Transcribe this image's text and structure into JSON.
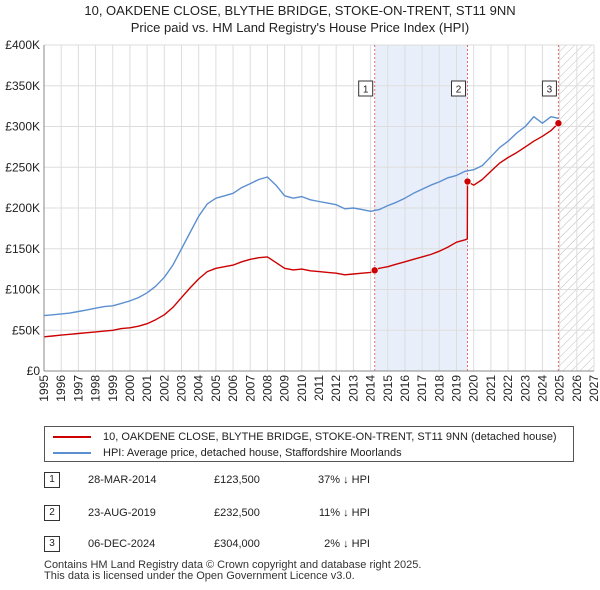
{
  "title": {
    "line1": "10, OAKDENE CLOSE, BLYTHE BRIDGE, STOKE-ON-TRENT, ST11 9NN",
    "line2": "Price paid vs. HM Land Registry's House Price Index (HPI)"
  },
  "legend": {
    "property_label": "10, OAKDENE CLOSE, BLYTHE BRIDGE, STOKE-ON-TRENT, ST11 9NN (detached house)",
    "hpi_label": "HPI: Average price, detached house, Staffordshire Moorlands"
  },
  "sales": [
    {
      "num": "1",
      "date": "28-MAR-2014",
      "price": "£123,500",
      "hpi": "37% ↓ HPI"
    },
    {
      "num": "2",
      "date": "23-AUG-2019",
      "price": "£232,500",
      "hpi": "11% ↓ HPI"
    },
    {
      "num": "3",
      "date": "06-DEC-2024",
      "price": "£304,000",
      "hpi": "2% ↓ HPI"
    }
  ],
  "footer": {
    "line1": "Contains HM Land Registry data © Crown copyright and database right 2025.",
    "line2": "This data is licensed under the Open Government Licence v3.0."
  },
  "colors": {
    "property": "#cc0000",
    "hpi": "#5b8fd0",
    "highlight": "#e8eefa",
    "marker_line": "#e07070",
    "grid": "#dddddd"
  },
  "chart_data": {
    "type": "line",
    "xlabel": "",
    "ylabel": "",
    "xlim": [
      1995,
      2027
    ],
    "ylim": [
      0,
      400000
    ],
    "x_ticks": [
      1995,
      1996,
      1997,
      1998,
      1999,
      2000,
      2001,
      2002,
      2003,
      2004,
      2005,
      2006,
      2007,
      2008,
      2009,
      2010,
      2011,
      2012,
      2013,
      2014,
      2015,
      2016,
      2017,
      2018,
      2019,
      2020,
      2021,
      2022,
      2023,
      2024,
      2025,
      2026,
      2027
    ],
    "y_ticks": [
      0,
      50000,
      100000,
      150000,
      200000,
      250000,
      300000,
      350000,
      400000
    ],
    "y_tick_labels": [
      "£0",
      "£50K",
      "£100K",
      "£150K",
      "£200K",
      "£250K",
      "£300K",
      "£350K",
      "£400K"
    ],
    "grid": true,
    "highlight_span": [
      2014.24,
      2019.64
    ],
    "forecast_from": 2024.93,
    "series": [
      {
        "name": "HPI: Average price, detached house, Staffordshire Moorlands",
        "x": [
          1995,
          1995.5,
          1996,
          1996.5,
          1997,
          1997.5,
          1998,
          1998.5,
          1999,
          1999.5,
          2000,
          2000.5,
          2001,
          2001.5,
          2002,
          2002.5,
          2003,
          2003.5,
          2004,
          2004.5,
          2005,
          2005.5,
          2006,
          2006.5,
          2007,
          2007.5,
          2008,
          2008.5,
          2009,
          2009.5,
          2010,
          2010.5,
          2011,
          2011.5,
          2012,
          2012.5,
          2013,
          2013.5,
          2014,
          2014.5,
          2015,
          2015.5,
          2016,
          2016.5,
          2017,
          2017.5,
          2018,
          2018.5,
          2019,
          2019.5,
          2020,
          2020.5,
          2021,
          2021.5,
          2022,
          2022.5,
          2023,
          2023.5,
          2024,
          2024.5,
          2024.93
        ],
        "values": [
          68000,
          69000,
          70000,
          71000,
          73000,
          75000,
          77000,
          79000,
          80000,
          83000,
          86000,
          90000,
          96000,
          104000,
          115000,
          130000,
          150000,
          170000,
          190000,
          205000,
          212000,
          215000,
          218000,
          225000,
          230000,
          235000,
          238000,
          228000,
          215000,
          212000,
          214000,
          210000,
          208000,
          206000,
          204000,
          199000,
          200000,
          198000,
          196000,
          198000,
          203000,
          207000,
          212000,
          218000,
          223000,
          228000,
          232000,
          237000,
          240000,
          245000,
          247000,
          252000,
          263000,
          274000,
          282000,
          292000,
          300000,
          312000,
          304000,
          312000,
          310000
        ]
      },
      {
        "name": "10, OAKDENE CLOSE, BLYTHE BRIDGE, STOKE-ON-TRENT, ST11 9NN (detached house)",
        "x": [
          1995,
          1995.5,
          1996,
          1996.5,
          1997,
          1997.5,
          1998,
          1998.5,
          1999,
          1999.5,
          2000,
          2000.5,
          2001,
          2001.5,
          2002,
          2002.5,
          2003,
          2003.5,
          2004,
          2004.5,
          2005,
          2005.5,
          2006,
          2006.5,
          2007,
          2007.5,
          2008,
          2008.5,
          2009,
          2009.5,
          2010,
          2010.5,
          2011,
          2011.5,
          2012,
          2012.5,
          2013,
          2013.5,
          2014,
          2014.24,
          2014.5,
          2015,
          2015.5,
          2016,
          2016.5,
          2017,
          2017.5,
          2018,
          2018.5,
          2019,
          2019.5,
          2019.63,
          2019.64,
          2020,
          2020.5,
          2021,
          2021.5,
          2022,
          2022.5,
          2023,
          2023.5,
          2024,
          2024.5,
          2024.93
        ],
        "values": [
          42000,
          43000,
          44000,
          45000,
          46000,
          47000,
          48000,
          49000,
          50000,
          52000,
          53000,
          55000,
          58000,
          63000,
          69000,
          78000,
          90000,
          102000,
          113000,
          122000,
          126000,
          128000,
          130000,
          134000,
          137000,
          139000,
          140000,
          133000,
          126000,
          124000,
          125000,
          123000,
          122000,
          121000,
          120000,
          118000,
          119000,
          120000,
          121000,
          123500,
          126000,
          128000,
          131000,
          134000,
          137000,
          140000,
          143000,
          147000,
          152000,
          158000,
          161000,
          162000,
          232500,
          228000,
          235000,
          245000,
          255000,
          262000,
          268000,
          275000,
          282000,
          288000,
          295000,
          304000
        ]
      }
    ],
    "sales_points": [
      {
        "label": "1",
        "x": 2014.24,
        "value": 123500
      },
      {
        "label": "2",
        "x": 2019.64,
        "value": 232500
      },
      {
        "label": "3",
        "x": 2024.93,
        "value": 304000
      }
    ]
  }
}
